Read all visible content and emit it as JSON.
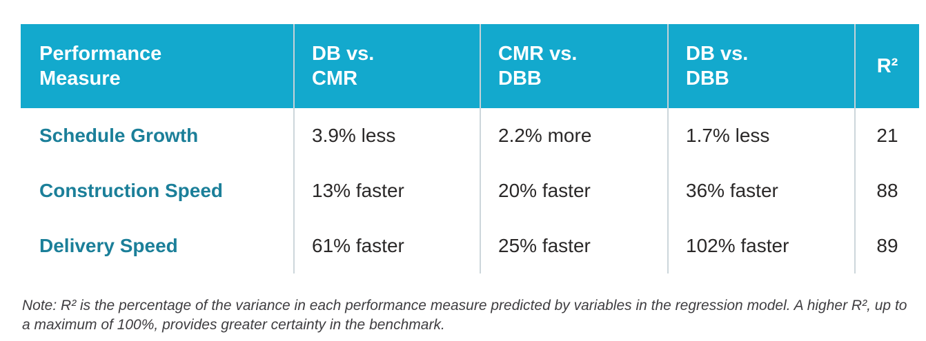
{
  "table": {
    "columns": [
      {
        "label": "Performance Measure"
      },
      {
        "label": "DB vs. CMR"
      },
      {
        "label": "CMR vs. DBB"
      },
      {
        "label": "DB vs. DBB"
      },
      {
        "label": "R²"
      }
    ],
    "rows": [
      {
        "measure": "Schedule Growth",
        "values": [
          "3.9% less",
          "2.2% more",
          "1.7% less",
          "21"
        ]
      },
      {
        "measure": "Construction Speed",
        "values": [
          "13% faster",
          "20% faster",
          "36% faster",
          "88"
        ]
      },
      {
        "measure": "Delivery Speed",
        "values": [
          "61% faster",
          "25% faster",
          "102% faster",
          "89"
        ]
      }
    ]
  },
  "note": "Note: R² is the percentage of the variance in each performance measure predicted by variables in the regression model. A higher R², up to a maximum of 100%, provides greater certainty in the benchmark.",
  "colors": {
    "header_background": "#13A9CD",
    "header_text": "#ffffff",
    "row_label_text": "#1B7F99",
    "value_text": "#2a2828",
    "divider": "#ccd6db",
    "note_text": "#3e3d40"
  }
}
